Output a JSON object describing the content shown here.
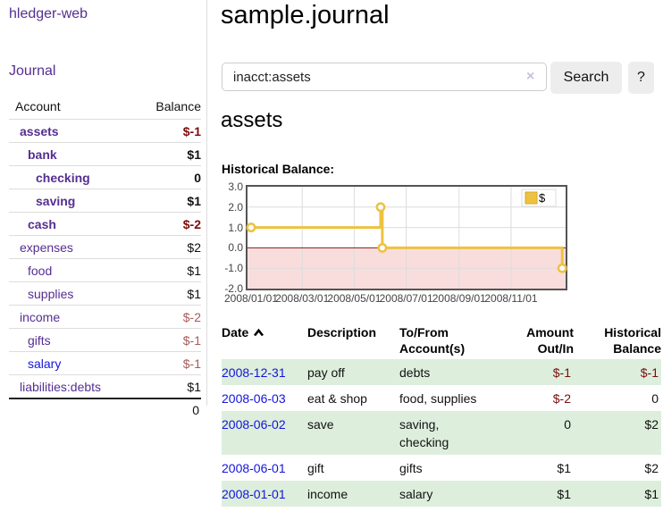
{
  "app": {
    "title": "hledger-web"
  },
  "sidebar": {
    "journal_link": "Journal",
    "accounts": {
      "header_account": "Account",
      "header_balance": "Balance",
      "rows": [
        {
          "name": "assets",
          "balance": "$-1",
          "indent": 1,
          "bold": true,
          "negative": true
        },
        {
          "name": "bank",
          "balance": "$1",
          "indent": 2,
          "bold": true,
          "negative": false
        },
        {
          "name": "checking",
          "balance": "0",
          "indent": 3,
          "bold": true,
          "negative": false
        },
        {
          "name": "saving",
          "balance": "$1",
          "indent": 3,
          "bold": true,
          "negative": false
        },
        {
          "name": "cash",
          "balance": "$-2",
          "indent": 2,
          "bold": true,
          "negative": true
        },
        {
          "name": "expenses",
          "balance": "$2",
          "indent": 1,
          "bold": false,
          "negative": false
        },
        {
          "name": "food",
          "balance": "$1",
          "indent": 2,
          "bold": false,
          "negative": false
        },
        {
          "name": "supplies",
          "balance": "$1",
          "indent": 2,
          "bold": false,
          "negative": false
        },
        {
          "name": "income",
          "balance": "$-2",
          "indent": 1,
          "bold": false,
          "negative": true
        },
        {
          "name": "gifts",
          "balance": "$-1",
          "indent": 2,
          "bold": false,
          "negative": true
        },
        {
          "name": "salary",
          "balance": "$-1",
          "indent": 2,
          "bold": false,
          "negative": true,
          "unvisited": true
        },
        {
          "name": "liabilities:debts",
          "balance": "$1",
          "indent": 1,
          "bold": false,
          "negative": false
        }
      ],
      "total": "0"
    }
  },
  "header": {
    "title": "sample.journal"
  },
  "search": {
    "value": "inacct:assets",
    "clear_icon": "×",
    "search_button": "Search",
    "help_button": "?"
  },
  "account_view": {
    "heading": "assets",
    "chart_title": "Historical Balance:"
  },
  "chart_data": {
    "type": "line",
    "style": "step",
    "title": "Historical Balance",
    "legend_position": "top-right",
    "legend_label": "$",
    "series": [
      {
        "name": "$",
        "color": "#edc240",
        "points": [
          {
            "date": "2008-01-01",
            "value": 1
          },
          {
            "date": "2008-06-01",
            "value": 2
          },
          {
            "date": "2008-06-03",
            "value": 0
          },
          {
            "date": "2008-12-31",
            "value": -1
          }
        ]
      }
    ],
    "x_ticks": [
      {
        "label": "2008/01/01",
        "date": "2008-01-01"
      },
      {
        "label": "2008/03/01",
        "date": "2008-03-01"
      },
      {
        "label": "2008/05/01",
        "date": "2008-05-01"
      },
      {
        "label": "2008/07/01",
        "date": "2008-07-01"
      },
      {
        "label": "2008/09/01",
        "date": "2008-09-01"
      },
      {
        "label": "2008/11/01",
        "date": "2008-11-01"
      }
    ],
    "y_ticks": [
      {
        "label": "3.0",
        "value": 3
      },
      {
        "label": "2.0",
        "value": 2
      },
      {
        "label": "1.0",
        "value": 1
      },
      {
        "label": "0.0",
        "value": 0
      },
      {
        "label": "-1.0",
        "value": -1
      },
      {
        "label": "-2.0",
        "value": -2
      }
    ],
    "ylim": [
      -2,
      3
    ],
    "xlim": [
      "2008-01-01",
      "2008-12-31"
    ],
    "grid": true,
    "negative_region_color": "#f9dddd",
    "zero_line_color": "#871c1c",
    "grid_color": "#dcdcdc"
  },
  "register": {
    "headers": [
      {
        "line1": "Date",
        "line2": "",
        "align": "left",
        "sortable": true
      },
      {
        "line1": "Description",
        "line2": "",
        "align": "left"
      },
      {
        "line1": "To/From",
        "line2": "Account(s)",
        "align": "left"
      },
      {
        "line1": "Amount",
        "line2": "Out/In",
        "align": "right"
      },
      {
        "line1": "Historical",
        "line2": "Balance",
        "align": "right"
      }
    ],
    "rows": [
      {
        "date": "2008-12-31",
        "description": "pay off",
        "accounts": "debts",
        "amount": "$-1",
        "balance": "$-1",
        "amount_negative": true,
        "balance_negative": true
      },
      {
        "date": "2008-06-03",
        "description": "eat & shop",
        "accounts": "food, supplies",
        "amount": "$-2",
        "balance": "0",
        "amount_negative": true,
        "balance_negative": false
      },
      {
        "date": "2008-06-02",
        "description": "save",
        "accounts": "saving, checking",
        "amount": "0",
        "balance": "$2",
        "amount_negative": false,
        "balance_negative": false
      },
      {
        "date": "2008-06-01",
        "description": "gift",
        "accounts": "gifts",
        "amount": "$1",
        "balance": "$2",
        "amount_negative": false,
        "balance_negative": false
      },
      {
        "date": "2008-01-01",
        "description": "income",
        "accounts": "salary",
        "amount": "$1",
        "balance": "$1",
        "amount_negative": false,
        "balance_negative": false
      }
    ]
  }
}
